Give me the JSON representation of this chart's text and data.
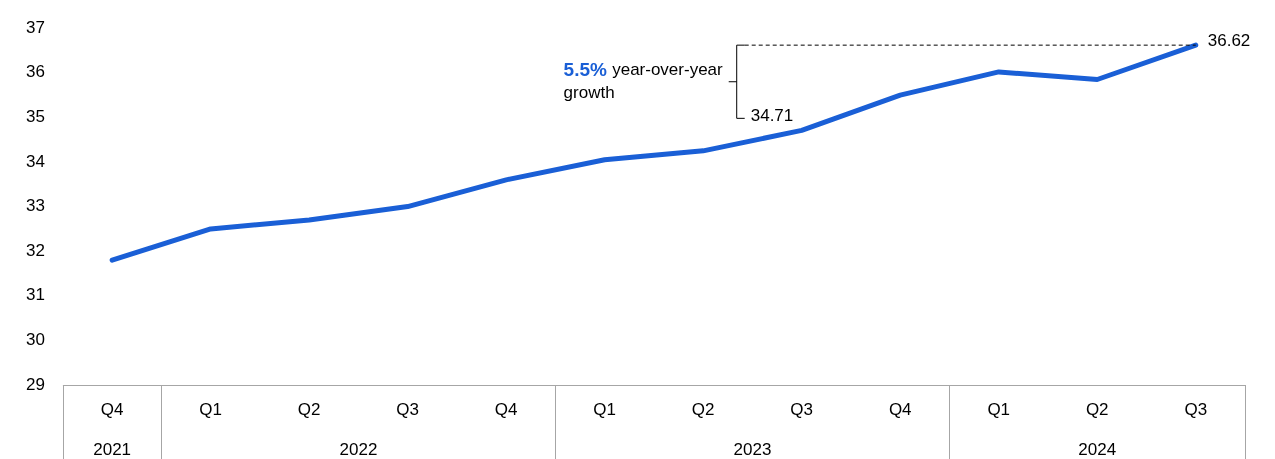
{
  "chart_data": {
    "type": "line",
    "categories": [
      "Q4",
      "Q1",
      "Q2",
      "Q3",
      "Q4",
      "Q1",
      "Q2",
      "Q3",
      "Q4",
      "Q1",
      "Q2",
      "Q3"
    ],
    "annotations": [
      "2021",
      "2022",
      "2023",
      "2024",
      "5.5% year-over-year growth"
    ],
    "series": [
      {
        "color": "#1a5fd6",
        "values": [
          31.8,
          32.5,
          32.7,
          33.0,
          33.6,
          34.05,
          34.25,
          34.71,
          35.5,
          36.02,
          35.85,
          36.62
        ],
        "value_labels": [
          null,
          null,
          null,
          null,
          null,
          null,
          null,
          "34.71",
          null,
          null,
          null,
          "36.62"
        ]
      }
    ],
    "ylim": [
      29,
      37
    ],
    "yticks": [
      29,
      30,
      31,
      32,
      33,
      34,
      35,
      36,
      37
    ],
    "grid": false,
    "legend": false,
    "marker": "none",
    "line_style": "solid"
  }
}
